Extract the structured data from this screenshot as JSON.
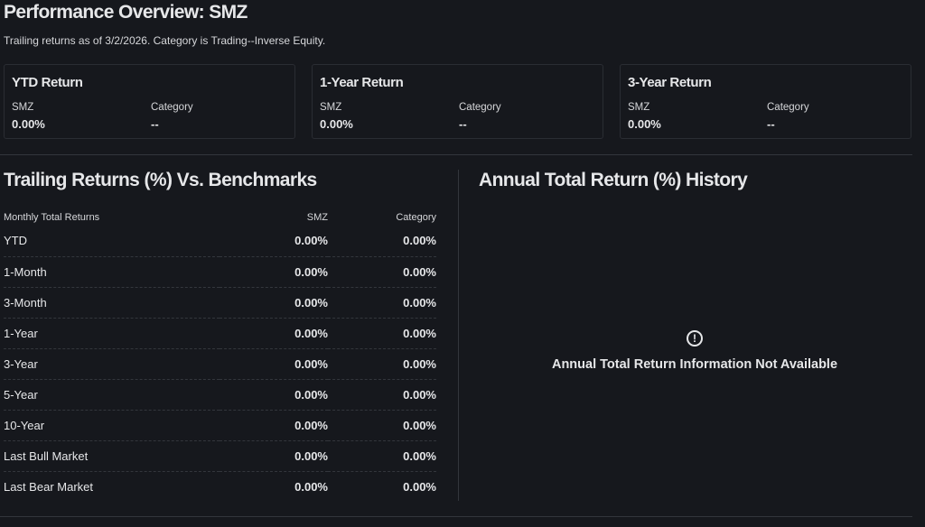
{
  "title": "Performance Overview: SMZ",
  "subtitle": "Trailing returns as of 3/2/2026. Category is Trading--Inverse Equity.",
  "cards": [
    {
      "title": "YTD Return",
      "fund_label": "SMZ",
      "fund_value": "0.00%",
      "cat_label": "Category",
      "cat_value": "--"
    },
    {
      "title": "1-Year Return",
      "fund_label": "SMZ",
      "fund_value": "0.00%",
      "cat_label": "Category",
      "cat_value": "--"
    },
    {
      "title": "3-Year Return",
      "fund_label": "SMZ",
      "fund_value": "0.00%",
      "cat_label": "Category",
      "cat_value": "--"
    }
  ],
  "trailing": {
    "heading": "Trailing Returns (%) Vs. Benchmarks",
    "columns": [
      "Monthly Total Returns",
      "SMZ",
      "Category"
    ],
    "rows": [
      [
        "YTD",
        "0.00%",
        "0.00%"
      ],
      [
        "1-Month",
        "0.00%",
        "0.00%"
      ],
      [
        "3-Month",
        "0.00%",
        "0.00%"
      ],
      [
        "1-Year",
        "0.00%",
        "0.00%"
      ],
      [
        "3-Year",
        "0.00%",
        "0.00%"
      ],
      [
        "5-Year",
        "0.00%",
        "0.00%"
      ],
      [
        "10-Year",
        "0.00%",
        "0.00%"
      ],
      [
        "Last Bull Market",
        "0.00%",
        "0.00%"
      ],
      [
        "Last Bear Market",
        "0.00%",
        "0.00%"
      ]
    ]
  },
  "annual": {
    "heading": "Annual Total Return (%) History",
    "icon": "info-circle-icon",
    "icon_glyph": "!",
    "message": "Annual Total Return Information Not Available"
  }
}
